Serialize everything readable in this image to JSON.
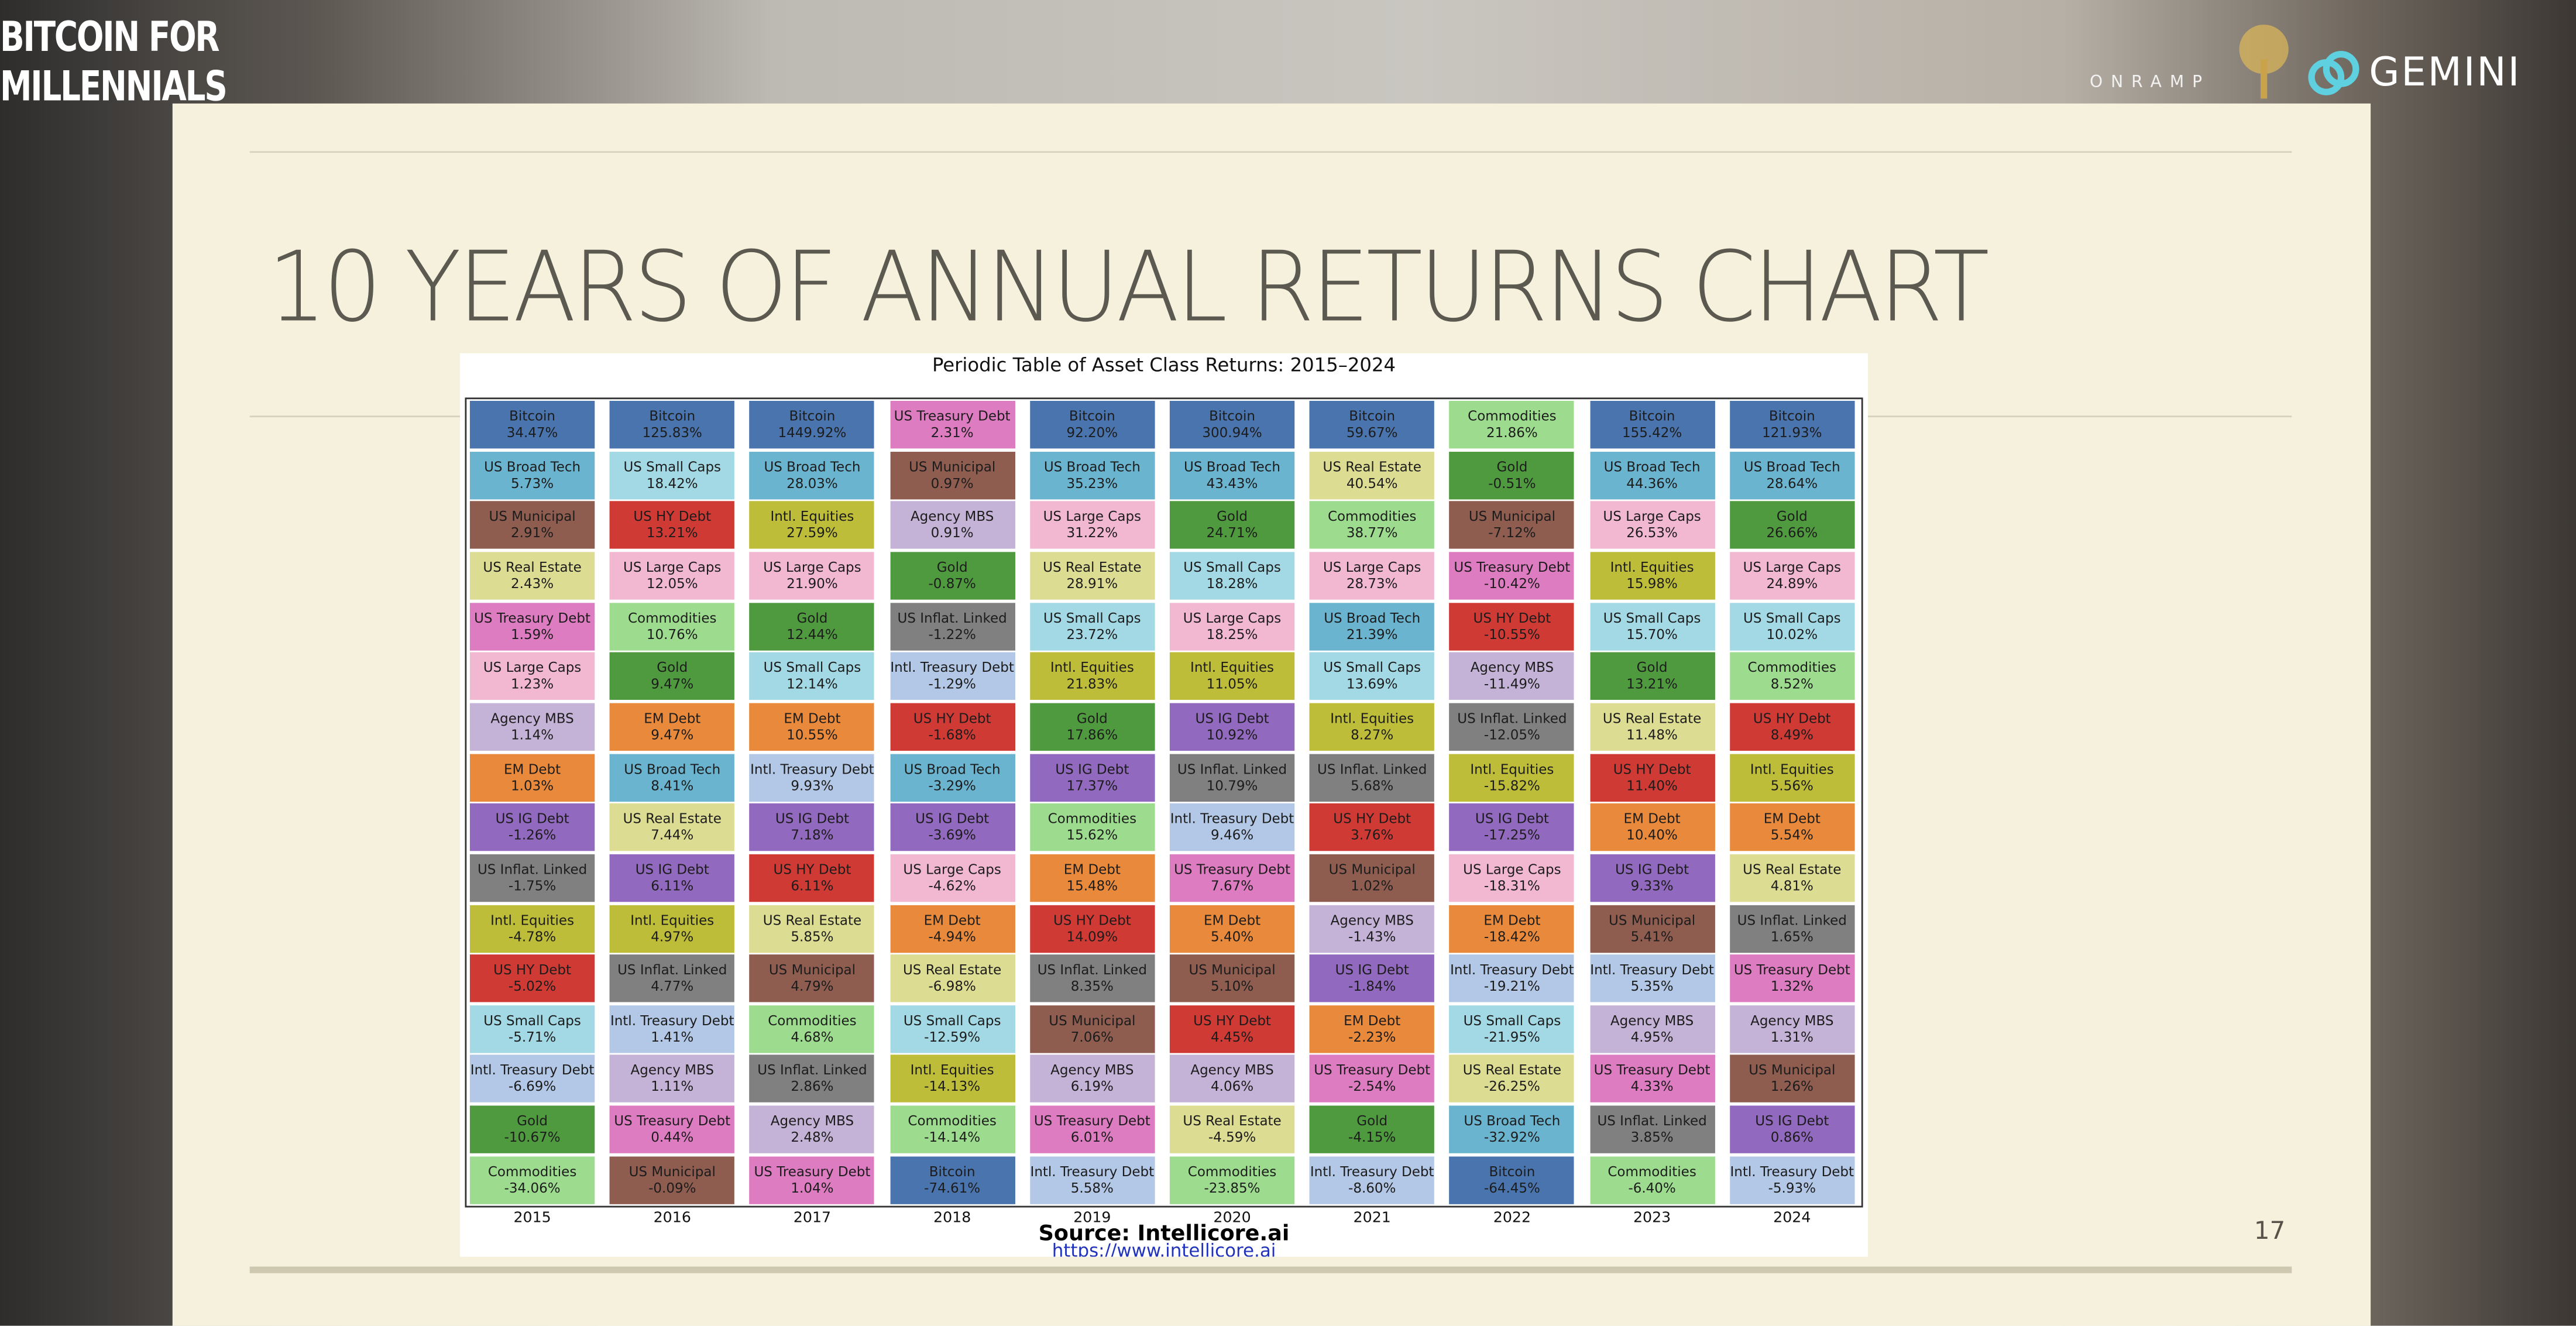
{
  "header": {
    "logo_line1": "BITCOIN FOR",
    "logo_line2": "MILLENNIALS",
    "sponsor1": "ONRAMP",
    "sponsor2": "GEMINI"
  },
  "slide": {
    "title": "10 YEARS OF ANNUAL RETURNS CHART",
    "page_number": "17"
  },
  "chart": {
    "title": "Periodic Table of Asset Class Returns: 2015–2024",
    "source": "Source: Intellicore.ai",
    "url": "https://www.intellicore.ai",
    "asset_colors": {
      "Bitcoin": "#4a74ad",
      "US Broad Tech": "#6bb4cf",
      "US Municipal": "#8e5d50",
      "US Real Estate": "#dcdc93",
      "US Treasury Debt": "#de7cc1",
      "US Large Caps": "#f2b8d2",
      "Agency MBS": "#c4b3d6",
      "EM Debt": "#e8893b",
      "US IG Debt": "#9169be",
      "US Inflat. Linked": "#808080",
      "Intl. Equities": "#bdbd3a",
      "US HY Debt": "#d03a35",
      "US Small Caps": "#a3d9e4",
      "Intl. Treasury Debt": "#b3c8e6",
      "Gold": "#4f9a3f",
      "Commodities": "#9ddc8e"
    },
    "columns": [
      {
        "year": "2015",
        "cells": [
          [
            "Bitcoin",
            "34.47%"
          ],
          [
            "US Broad Tech",
            "5.73%"
          ],
          [
            "US Municipal",
            "2.91%"
          ],
          [
            "US Real Estate",
            "2.43%"
          ],
          [
            "US Treasury Debt",
            "1.59%"
          ],
          [
            "US Large Caps",
            "1.23%"
          ],
          [
            "Agency MBS",
            "1.14%"
          ],
          [
            "EM Debt",
            "1.03%"
          ],
          [
            "US IG Debt",
            "-1.26%"
          ],
          [
            "US Inflat. Linked",
            "-1.75%"
          ],
          [
            "Intl. Equities",
            "-4.78%"
          ],
          [
            "US HY Debt",
            "-5.02%"
          ],
          [
            "US Small Caps",
            "-5.71%"
          ],
          [
            "Intl. Treasury Debt",
            "-6.69%"
          ],
          [
            "Gold",
            "-10.67%"
          ],
          [
            "Commodities",
            "-34.06%"
          ]
        ]
      },
      {
        "year": "2016",
        "cells": [
          [
            "Bitcoin",
            "125.83%"
          ],
          [
            "US Small Caps",
            "18.42%"
          ],
          [
            "US HY Debt",
            "13.21%"
          ],
          [
            "US Large Caps",
            "12.05%"
          ],
          [
            "Commodities",
            "10.76%"
          ],
          [
            "Gold",
            "9.47%"
          ],
          [
            "EM Debt",
            "9.47%"
          ],
          [
            "US Broad Tech",
            "8.41%"
          ],
          [
            "US Real Estate",
            "7.44%"
          ],
          [
            "US IG Debt",
            "6.11%"
          ],
          [
            "Intl. Equities",
            "4.97%"
          ],
          [
            "US Inflat. Linked",
            "4.77%"
          ],
          [
            "Intl. Treasury Debt",
            "1.41%"
          ],
          [
            "Agency MBS",
            "1.11%"
          ],
          [
            "US Treasury Debt",
            "0.44%"
          ],
          [
            "US Municipal",
            "-0.09%"
          ]
        ]
      },
      {
        "year": "2017",
        "cells": [
          [
            "Bitcoin",
            "1449.92%"
          ],
          [
            "US Broad Tech",
            "28.03%"
          ],
          [
            "Intl. Equities",
            "27.59%"
          ],
          [
            "US Large Caps",
            "21.90%"
          ],
          [
            "Gold",
            "12.44%"
          ],
          [
            "US Small Caps",
            "12.14%"
          ],
          [
            "EM Debt",
            "10.55%"
          ],
          [
            "Intl. Treasury Debt",
            "9.93%"
          ],
          [
            "US IG Debt",
            "7.18%"
          ],
          [
            "US HY Debt",
            "6.11%"
          ],
          [
            "US Real Estate",
            "5.85%"
          ],
          [
            "US Municipal",
            "4.79%"
          ],
          [
            "Commodities",
            "4.68%"
          ],
          [
            "US Inflat. Linked",
            "2.86%"
          ],
          [
            "Agency MBS",
            "2.48%"
          ],
          [
            "US Treasury Debt",
            "1.04%"
          ]
        ]
      },
      {
        "year": "2018",
        "cells": [
          [
            "US Treasury Debt",
            "2.31%"
          ],
          [
            "US Municipal",
            "0.97%"
          ],
          [
            "Agency MBS",
            "0.91%"
          ],
          [
            "Gold",
            "-0.87%"
          ],
          [
            "US Inflat. Linked",
            "-1.22%"
          ],
          [
            "Intl. Treasury Debt",
            "-1.29%"
          ],
          [
            "US HY Debt",
            "-1.68%"
          ],
          [
            "US Broad Tech",
            "-3.29%"
          ],
          [
            "US IG Debt",
            "-3.69%"
          ],
          [
            "US Large Caps",
            "-4.62%"
          ],
          [
            "EM Debt",
            "-4.94%"
          ],
          [
            "US Real Estate",
            "-6.98%"
          ],
          [
            "US Small Caps",
            "-12.59%"
          ],
          [
            "Intl. Equities",
            "-14.13%"
          ],
          [
            "Commodities",
            "-14.14%"
          ],
          [
            "Bitcoin",
            "-74.61%"
          ]
        ]
      },
      {
        "year": "2019",
        "cells": [
          [
            "Bitcoin",
            "92.20%"
          ],
          [
            "US Broad Tech",
            "35.23%"
          ],
          [
            "US Large Caps",
            "31.22%"
          ],
          [
            "US Real Estate",
            "28.91%"
          ],
          [
            "US Small Caps",
            "23.72%"
          ],
          [
            "Intl. Equities",
            "21.83%"
          ],
          [
            "Gold",
            "17.86%"
          ],
          [
            "US IG Debt",
            "17.37%"
          ],
          [
            "Commodities",
            "15.62%"
          ],
          [
            "EM Debt",
            "15.48%"
          ],
          [
            "US HY Debt",
            "14.09%"
          ],
          [
            "US Inflat. Linked",
            "8.35%"
          ],
          [
            "US Municipal",
            "7.06%"
          ],
          [
            "Agency MBS",
            "6.19%"
          ],
          [
            "US Treasury Debt",
            "6.01%"
          ],
          [
            "Intl. Treasury Debt",
            "5.58%"
          ]
        ]
      },
      {
        "year": "2020",
        "cells": [
          [
            "Bitcoin",
            "300.94%"
          ],
          [
            "US Broad Tech",
            "43.43%"
          ],
          [
            "Gold",
            "24.71%"
          ],
          [
            "US Small Caps",
            "18.28%"
          ],
          [
            "US Large Caps",
            "18.25%"
          ],
          [
            "Intl. Equities",
            "11.05%"
          ],
          [
            "US IG Debt",
            "10.92%"
          ],
          [
            "US Inflat. Linked",
            "10.79%"
          ],
          [
            "Intl. Treasury Debt",
            "9.46%"
          ],
          [
            "US Treasury Debt",
            "7.67%"
          ],
          [
            "EM Debt",
            "5.40%"
          ],
          [
            "US Municipal",
            "5.10%"
          ],
          [
            "US HY Debt",
            "4.45%"
          ],
          [
            "Agency MBS",
            "4.06%"
          ],
          [
            "US Real Estate",
            "-4.59%"
          ],
          [
            "Commodities",
            "-23.85%"
          ]
        ]
      },
      {
        "year": "2021",
        "cells": [
          [
            "Bitcoin",
            "59.67%"
          ],
          [
            "US Real Estate",
            "40.54%"
          ],
          [
            "Commodities",
            "38.77%"
          ],
          [
            "US Large Caps",
            "28.73%"
          ],
          [
            "US Broad Tech",
            "21.39%"
          ],
          [
            "US Small Caps",
            "13.69%"
          ],
          [
            "Intl. Equities",
            "8.27%"
          ],
          [
            "US Inflat. Linked",
            "5.68%"
          ],
          [
            "US HY Debt",
            "3.76%"
          ],
          [
            "US Municipal",
            "1.02%"
          ],
          [
            "Agency MBS",
            "-1.43%"
          ],
          [
            "US IG Debt",
            "-1.84%"
          ],
          [
            "EM Debt",
            "-2.23%"
          ],
          [
            "US Treasury Debt",
            "-2.54%"
          ],
          [
            "Gold",
            "-4.15%"
          ],
          [
            "Intl. Treasury Debt",
            "-8.60%"
          ]
        ]
      },
      {
        "year": "2022",
        "cells": [
          [
            "Commodities",
            "21.86%"
          ],
          [
            "Gold",
            "-0.51%"
          ],
          [
            "US Municipal",
            "-7.12%"
          ],
          [
            "US Treasury Debt",
            "-10.42%"
          ],
          [
            "US HY Debt",
            "-10.55%"
          ],
          [
            "Agency MBS",
            "-11.49%"
          ],
          [
            "US Inflat. Linked",
            "-12.05%"
          ],
          [
            "Intl. Equities",
            "-15.82%"
          ],
          [
            "US IG Debt",
            "-17.25%"
          ],
          [
            "US Large Caps",
            "-18.31%"
          ],
          [
            "EM Debt",
            "-18.42%"
          ],
          [
            "Intl. Treasury Debt",
            "-19.21%"
          ],
          [
            "US Small Caps",
            "-21.95%"
          ],
          [
            "US Real Estate",
            "-26.25%"
          ],
          [
            "US Broad Tech",
            "-32.92%"
          ],
          [
            "Bitcoin",
            "-64.45%"
          ]
        ]
      },
      {
        "year": "2023",
        "cells": [
          [
            "Bitcoin",
            "155.42%"
          ],
          [
            "US Broad Tech",
            "44.36%"
          ],
          [
            "US Large Caps",
            "26.53%"
          ],
          [
            "Intl. Equities",
            "15.98%"
          ],
          [
            "US Small Caps",
            "15.70%"
          ],
          [
            "Gold",
            "13.21%"
          ],
          [
            "US Real Estate",
            "11.48%"
          ],
          [
            "US HY Debt",
            "11.40%"
          ],
          [
            "EM Debt",
            "10.40%"
          ],
          [
            "US IG Debt",
            "9.33%"
          ],
          [
            "US Municipal",
            "5.41%"
          ],
          [
            "Intl. Treasury Debt",
            "5.35%"
          ],
          [
            "Agency MBS",
            "4.95%"
          ],
          [
            "US Treasury Debt",
            "4.33%"
          ],
          [
            "US Inflat. Linked",
            "3.85%"
          ],
          [
            "Commodities",
            "-6.40%"
          ]
        ]
      },
      {
        "year": "2024",
        "cells": [
          [
            "Bitcoin",
            "121.93%"
          ],
          [
            "US Broad Tech",
            "28.64%"
          ],
          [
            "Gold",
            "26.66%"
          ],
          [
            "US Large Caps",
            "24.89%"
          ],
          [
            "US Small Caps",
            "10.02%"
          ],
          [
            "Commodities",
            "8.52%"
          ],
          [
            "US HY Debt",
            "8.49%"
          ],
          [
            "Intl. Equities",
            "5.56%"
          ],
          [
            "EM Debt",
            "5.54%"
          ],
          [
            "US Real Estate",
            "4.81%"
          ],
          [
            "US Inflat. Linked",
            "1.65%"
          ],
          [
            "US Treasury Debt",
            "1.32%"
          ],
          [
            "Agency MBS",
            "1.31%"
          ],
          [
            "US Municipal",
            "1.26%"
          ],
          [
            "US IG Debt",
            "0.86%"
          ],
          [
            "Intl. Treasury Debt",
            "-5.93%"
          ]
        ]
      }
    ]
  }
}
